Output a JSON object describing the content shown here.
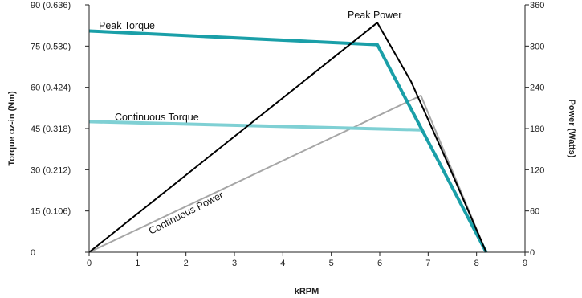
{
  "chart_data": {
    "type": "line",
    "xlabel": "kRPM",
    "ylabel_left": "Torque oz-in (Nm)",
    "ylabel_right": "Power (Watts)",
    "xlim": [
      0,
      9
    ],
    "ylim_left": [
      0,
      90
    ],
    "ylim_right": [
      0,
      360
    ],
    "x_ticks": [
      "0",
      "1",
      "2",
      "3",
      "4",
      "5",
      "6",
      "7",
      "8",
      "9"
    ],
    "y_left_ticks": [
      "0",
      "15 (0.106)",
      "30 (0.212)",
      "45 (0.318)",
      "60 (0.424)",
      "75 (0.530)",
      "90 (0.636)"
    ],
    "y_right_ticks": [
      "0",
      "60",
      "120",
      "180",
      "240",
      "300",
      "360"
    ],
    "grid": false,
    "colors": {
      "peak_torque": "#1a9fa8",
      "continuous_torque": "#7fd0d4",
      "peak_power": "#000000",
      "continuous_power": "#a6a6a6",
      "axes": "#222222"
    },
    "series": [
      {
        "name": "Peak Torque",
        "axis": "left",
        "x": [
          0,
          5.95,
          8.2
        ],
        "y": [
          80.5,
          75.5,
          0
        ]
      },
      {
        "name": "Continuous Torque",
        "axis": "left",
        "x": [
          0,
          6.85
        ],
        "y": [
          47.5,
          44.5
        ]
      },
      {
        "name": "Peak Power",
        "axis": "right",
        "x": [
          0,
          5.95,
          6.65,
          7.4,
          8.2
        ],
        "y": [
          0,
          334,
          248,
          130,
          0
        ]
      },
      {
        "name": "Continuous Power",
        "axis": "right",
        "x": [
          0,
          6.85,
          8.2
        ],
        "y": [
          0,
          228,
          0
        ]
      }
    ]
  }
}
